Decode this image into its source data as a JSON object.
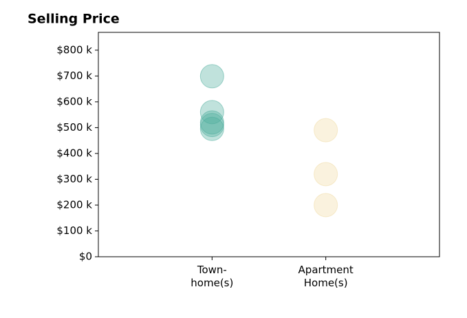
{
  "chart_data": {
    "type": "scatter",
    "title": "Selling Price",
    "categories": [
      "Town-\nhome(s)",
      "Apartment\nHome(s)"
    ],
    "xlim": [
      0,
      3
    ],
    "ylim": [
      0,
      869
    ],
    "yticks": [
      {
        "value": 0,
        "label": "$0"
      },
      {
        "value": 100,
        "label": "$100 k"
      },
      {
        "value": 200,
        "label": "$200 k"
      },
      {
        "value": 300,
        "label": "$300 k"
      },
      {
        "value": 400,
        "label": "$400 k"
      },
      {
        "value": 500,
        "label": "$500 k"
      },
      {
        "value": 600,
        "label": "$600 k"
      },
      {
        "value": 700,
        "label": "$700 k"
      },
      {
        "value": 800,
        "label": "$800 k"
      }
    ],
    "series": [
      {
        "color": "#4aab9b",
        "x": [
          1,
          1,
          1,
          1,
          1
        ],
        "values": [
          699,
          560,
          520,
          510,
          495
        ]
      },
      {
        "color": "#f0d9a0",
        "x": [
          2,
          2,
          2
        ],
        "values": [
          490,
          320,
          200
        ]
      }
    ]
  }
}
